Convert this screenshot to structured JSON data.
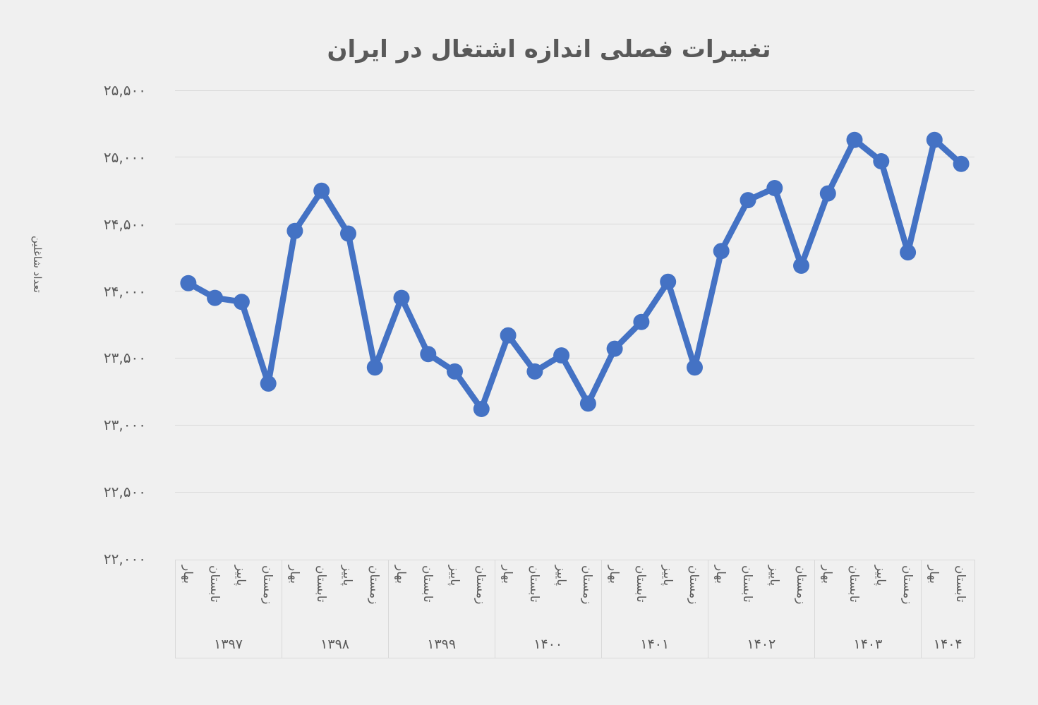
{
  "colors": {
    "background": "#f0f0f0",
    "gridline": "#d9d9d9",
    "text": "#595959",
    "series": "#4472c4"
  },
  "chart_data": {
    "type": "line",
    "title": "تغییرات فصلی اندازه اشتغال در ایران",
    "xlabel": "",
    "ylabel": "تعداد شاغلین",
    "ylim": [
      22000,
      25500
    ],
    "ytick_step": 500,
    "ytick_labels_fa": [
      "۲۵,۵۰۰",
      "۲۵,۰۰۰",
      "۲۴,۵۰۰",
      "۲۴,۰۰۰",
      "۲۳,۵۰۰",
      "۲۳,۰۰۰",
      "۲۲,۵۰۰",
      "۲۲,۰۰۰"
    ],
    "grid": true,
    "legend": "none",
    "series_name": "تعداد شاغلین",
    "year_groups": [
      {
        "year": "۱۳۹۷",
        "seasons": [
          "بهار",
          "تابستان",
          "پاییز",
          "زمستان"
        ],
        "values": [
          24060,
          23950,
          23920,
          23310
        ]
      },
      {
        "year": "۱۳۹۸",
        "seasons": [
          "بهار",
          "تابستان",
          "پاییز",
          "زمستان"
        ],
        "values": [
          24450,
          24750,
          24430,
          23430
        ]
      },
      {
        "year": "۱۳۹۹",
        "seasons": [
          "بهار",
          "تابستان",
          "پاییز",
          "زمستان"
        ],
        "values": [
          23950,
          23530,
          23400,
          23120
        ]
      },
      {
        "year": "۱۴۰۰",
        "seasons": [
          "بهار",
          "تابستان",
          "پاییز",
          "زمستان"
        ],
        "values": [
          23670,
          23400,
          23520,
          23160
        ]
      },
      {
        "year": "۱۴۰۱",
        "seasons": [
          "بهار",
          "تابستان",
          "پاییز",
          "زمستان"
        ],
        "values": [
          23570,
          23770,
          24070,
          23430
        ]
      },
      {
        "year": "۱۴۰۲",
        "seasons": [
          "بهار",
          "تابستان",
          "پاییز",
          "زمستان"
        ],
        "values": [
          24300,
          24680,
          24770,
          24190
        ]
      },
      {
        "year": "۱۴۰۳",
        "seasons": [
          "بهار",
          "تابستان",
          "پاییز",
          "زمستان"
        ],
        "values": [
          24730,
          25130,
          24970,
          24290
        ]
      },
      {
        "year": "۱۴۰۴",
        "seasons": [
          "بهار",
          "تابستان"
        ],
        "values": [
          25130,
          24950
        ]
      }
    ]
  }
}
